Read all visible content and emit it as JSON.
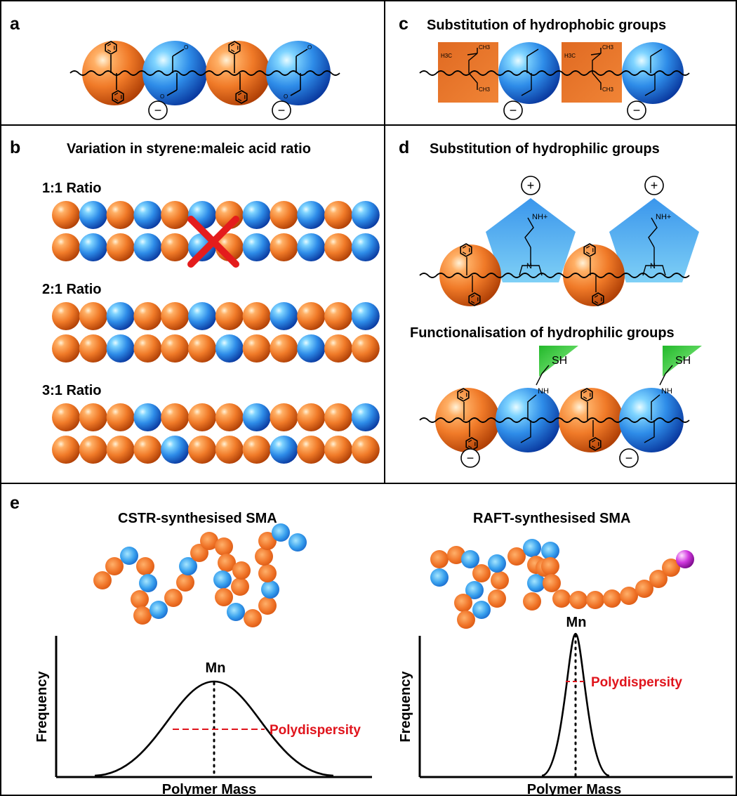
{
  "panels": {
    "a": {
      "label": "a"
    },
    "b": {
      "label": "b",
      "title": "Variation in styrene:maleic acid ratio",
      "ratios": [
        "1:1 Ratio",
        "2:1 Ratio",
        "3:1 Ratio"
      ],
      "rows": [
        "SMSMSMSMSMSM",
        "SMSMSMSMSMSM",
        "SSMSSMSSMSSM",
        "SSMSSSMSSMSS",
        "SSSMSSSMSSSM",
        "SSSSMSSSMSSS"
      ],
      "invalid_marker_row": 1
    },
    "c": {
      "label": "c",
      "title": "Substitution of hydrophobic groups"
    },
    "d": {
      "label": "d",
      "title": "Substitution of hydrophilic groups",
      "subtitle": "Functionalisation of hydrophilic groups"
    },
    "e": {
      "label": "e",
      "left": {
        "title": "CSTR-synthesised SMA",
        "ylabel": "Frequency",
        "xlabel": "Polymer Mass",
        "peak": "Mn",
        "dispersity": "Polydispersity"
      },
      "right": {
        "title": "RAFT-synthesised SMA",
        "ylabel": "Frequency",
        "xlabel": "Polymer Mass",
        "peak": "Mn",
        "dispersity": "Polydispersity"
      }
    }
  },
  "chem": {
    "carboxylate": "O",
    "charge_minus": "−",
    "charge_plus": "+",
    "methyl": "CH3",
    "methyl_left": "H3C",
    "amine": "NH+",
    "nitrogen": "N",
    "amide": "NH",
    "thiol": "SH"
  },
  "colors": {
    "styrene": "#f07a28",
    "maleic": "#2e8ce8",
    "amine_group": "#3aa0e8",
    "thiol_group": "#35c73a",
    "end_group": "#c23ad6",
    "dispersity": "#e0141c",
    "invalid_mark": "#e41c1c"
  }
}
